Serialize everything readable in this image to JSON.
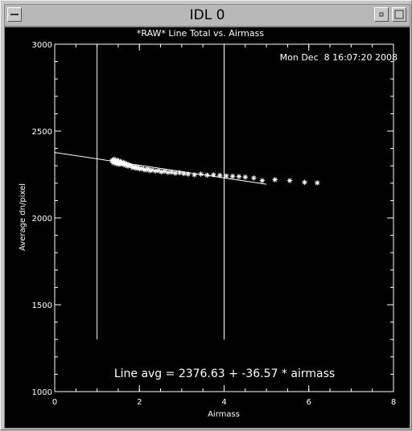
{
  "window": {
    "title": "IDL 0"
  },
  "chart_data": {
    "type": "scatter",
    "title": "*RAW* Line Total vs. Airmass",
    "xlabel": "Airmass",
    "ylabel": "Average dn/pixel",
    "timestamp": "Mon Dec  8 16:07:20 2008",
    "annotation": "Line avg = 2376.63 + -36.57 * airmass",
    "xlim": [
      0,
      8
    ],
    "ylim": [
      1000,
      3000
    ],
    "x_ticks": [
      "0",
      "2",
      "4",
      "6",
      "8"
    ],
    "y_ticks": [
      "1000",
      "1500",
      "2000",
      "2500",
      "3000"
    ],
    "fit_line": {
      "intercept": 2376.63,
      "slope": -36.57,
      "x_start": 0,
      "x_end": 5.0
    },
    "vertical_lines": [
      1.0,
      4.0
    ],
    "vertical_line_y_range": [
      1300,
      3000
    ],
    "series": [
      {
        "marker": "asterisk",
        "x": [
          1.35,
          1.38,
          1.4,
          1.42,
          1.45,
          1.48,
          1.5,
          1.52,
          1.55,
          1.58,
          1.6,
          1.63,
          1.66,
          1.7,
          1.73,
          1.76,
          1.8,
          1.84,
          1.88,
          1.92,
          1.96,
          2.0,
          2.05,
          2.1,
          2.15,
          2.2,
          2.25,
          2.3,
          2.38,
          2.45,
          2.52,
          2.6,
          2.68,
          2.76,
          2.85,
          2.95,
          3.05,
          3.15,
          3.3,
          3.45,
          3.6,
          3.75,
          3.9,
          4.05,
          4.2,
          4.35,
          4.5,
          4.7,
          4.9,
          5.2,
          5.55,
          5.9,
          6.2
        ],
        "y": [
          2330,
          2318,
          2338,
          2322,
          2312,
          2333,
          2320,
          2308,
          2326,
          2315,
          2310,
          2320,
          2303,
          2312,
          2298,
          2305,
          2300,
          2290,
          2295,
          2286,
          2292,
          2282,
          2285,
          2280,
          2276,
          2282,
          2272,
          2276,
          2270,
          2272,
          2265,
          2268,
          2262,
          2263,
          2258,
          2260,
          2255,
          2252,
          2248,
          2252,
          2246,
          2248,
          2245,
          2242,
          2240,
          2238,
          2235,
          2230,
          2215,
          2220,
          2215,
          2205,
          2202
        ]
      }
    ]
  }
}
